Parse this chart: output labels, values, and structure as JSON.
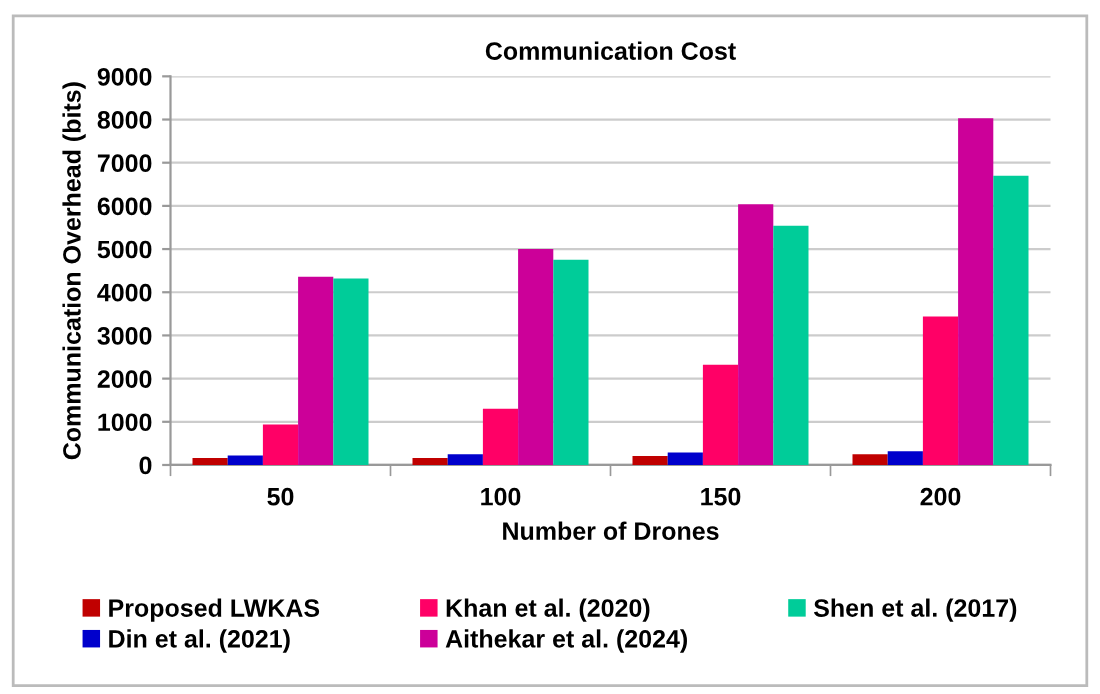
{
  "chart_data": {
    "type": "bar",
    "title": "Communication Cost",
    "xlabel": "Number of Drones",
    "ylabel": "Communication Overhead (bits)",
    "categories": [
      "50",
      "100",
      "150",
      "200"
    ],
    "series": [
      {
        "name": "Proposed LWKAS",
        "color": "#c00000",
        "values": [
          160,
          160,
          210,
          250
        ]
      },
      {
        "name": "Din et al. (2021)",
        "color": "#0000cc",
        "values": [
          220,
          250,
          290,
          320
        ]
      },
      {
        "name": "Khan et al. (2020)",
        "color": "#ff0066",
        "values": [
          940,
          1300,
          2320,
          3440
        ]
      },
      {
        "name": "Aithekar et al. (2024)",
        "color": "#cc0099",
        "values": [
          4360,
          5000,
          6040,
          8030
        ]
      },
      {
        "name": "Shen et al. (2017)",
        "color": "#00cc99",
        "values": [
          4320,
          4750,
          5540,
          6700
        ]
      }
    ],
    "ylim": [
      0,
      9000
    ],
    "yticks": [
      0,
      1000,
      2000,
      3000,
      4000,
      5000,
      6000,
      7000,
      8000,
      9000
    ],
    "grid": "y",
    "legend": "bottom"
  }
}
